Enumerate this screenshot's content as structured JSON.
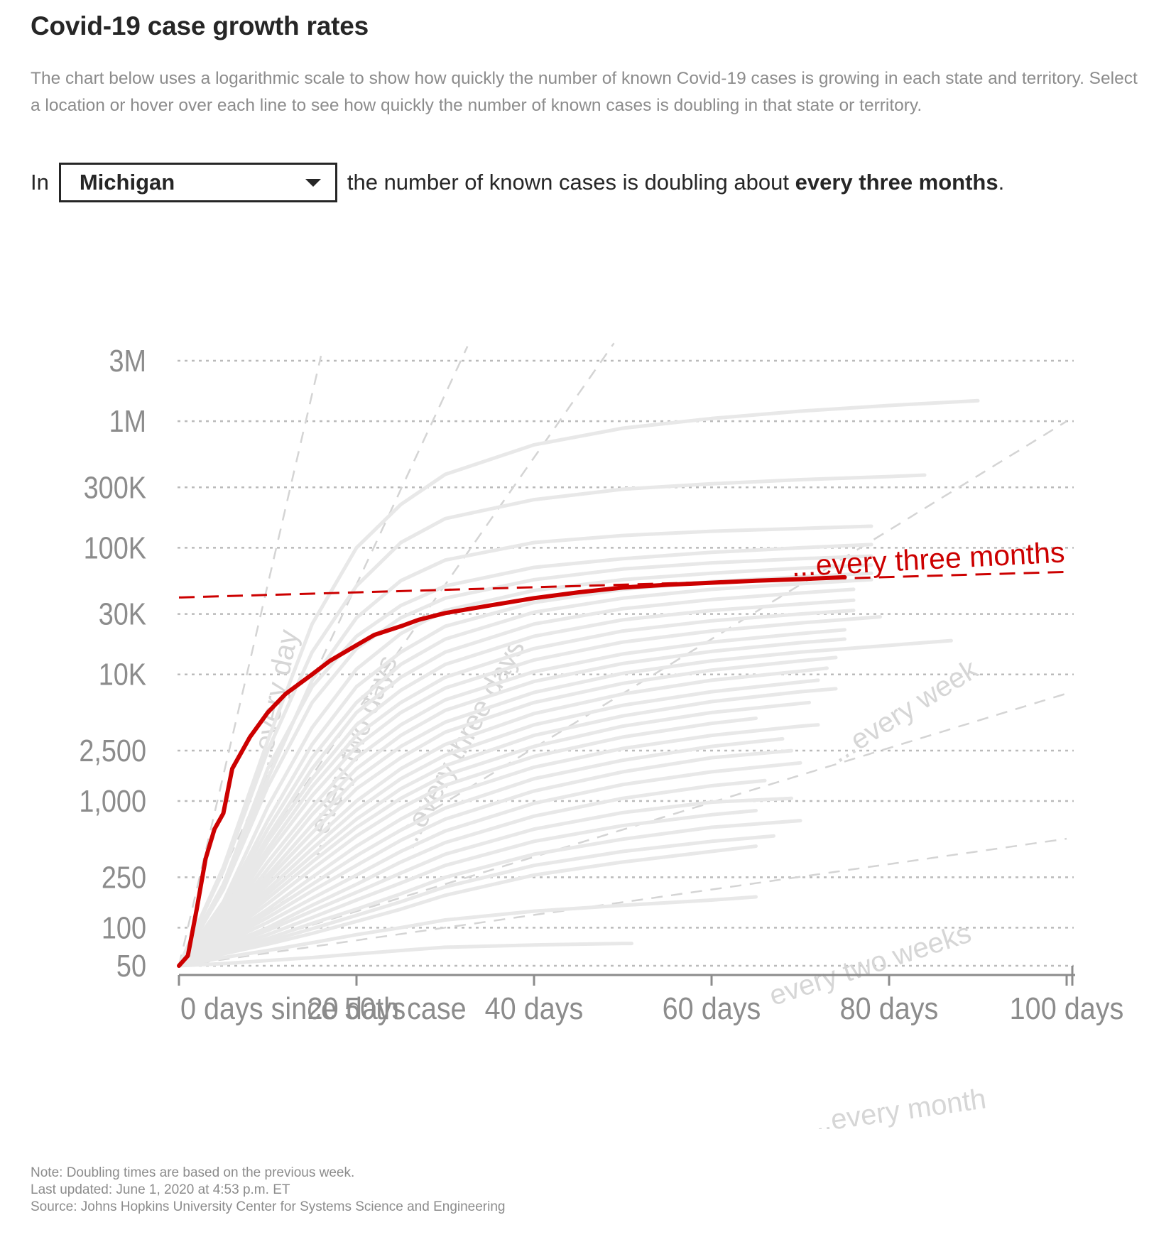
{
  "title": "Covid-19 case growth rates",
  "description": "The chart below uses a logarithmic scale to show how quickly the number of known Covid-19 cases is growing in each state and territory. Select a location or hover over each line to see how quickly the number of known cases is doubling in that state or territory.",
  "sentence": {
    "prefix": "In",
    "selected_location": "Michigan",
    "middle": "the number of known cases is doubling about",
    "rate": "every three months",
    "suffix": "."
  },
  "notes": {
    "note": "Note: Doubling times are based on the previous week.",
    "updated": "Last updated: June 1, 2020 at 4:53 p.m. ET",
    "source": "Source: Johns Hopkins University Center for Systems Science and Engineering"
  },
  "colors": {
    "highlight": "#cc0000",
    "background_lines": "#e8e8e8",
    "reference_lines": "#d4d4d4",
    "gridlines": "#bbbbbb",
    "axis": "#8c8c8c",
    "text": "#262626"
  },
  "chart_data": {
    "type": "line",
    "title": "Covid-19 case growth rates",
    "xlabel": "",
    "ylabel": "",
    "yscale": "log",
    "xlim": [
      0,
      100
    ],
    "ylim": [
      50,
      3000000
    ],
    "grid": "horizontal dotted",
    "y_ticks": [
      {
        "value": 50,
        "label": "50"
      },
      {
        "value": 100,
        "label": "100"
      },
      {
        "value": 250,
        "label": "250"
      },
      {
        "value": 1000,
        "label": "1,000"
      },
      {
        "value": 2500,
        "label": "2,500"
      },
      {
        "value": 10000,
        "label": "10K"
      },
      {
        "value": 30000,
        "label": "30K"
      },
      {
        "value": 100000,
        "label": "100K"
      },
      {
        "value": 300000,
        "label": "300K"
      },
      {
        "value": 1000000,
        "label": "1M"
      },
      {
        "value": 3000000,
        "label": "3M"
      }
    ],
    "x_ticks": [
      {
        "value": 0,
        "label": "0 days since 50th case"
      },
      {
        "value": 20,
        "label": "20 days"
      },
      {
        "value": 40,
        "label": "40 days"
      },
      {
        "value": 60,
        "label": "60 days"
      },
      {
        "value": 80,
        "label": "80 days"
      },
      {
        "value": 100,
        "label": "100 days"
      }
    ],
    "highlighted_series": {
      "name": "Michigan",
      "x": [
        0,
        1,
        2,
        3,
        4,
        5,
        6,
        8,
        10,
        12,
        15,
        17,
        20,
        22,
        25,
        27,
        30,
        35,
        40,
        45,
        50,
        55,
        60,
        65,
        70,
        75
      ],
      "y": [
        50,
        60,
        140,
        350,
        600,
        800,
        1800,
        3200,
        5000,
        7000,
        10000,
        12800,
        17000,
        20500,
        24000,
        27000,
        30500,
        35000,
        40000,
        44500,
        48500,
        51000,
        53000,
        55000,
        56500,
        58500
      ]
    },
    "highlight_reference": {
      "label": "...every three months",
      "y_at_0": 40500,
      "y_at_100": 64500
    },
    "doubling_reference_lines": [
      {
        "label": "...every day",
        "doubling_days": 1
      },
      {
        "label": "...every two days",
        "doubling_days": 2
      },
      {
        "label": "...every three days",
        "doubling_days": 3
      },
      {
        "label": "...every week",
        "doubling_days": 7
      },
      {
        "label": "every two weeks",
        "doubling_days": 14
      },
      {
        "label": "...every month",
        "doubling_days": 30
      }
    ],
    "background_series": [
      {
        "x": [
          0,
          5,
          10,
          15,
          20,
          25,
          30,
          40,
          50,
          60,
          70,
          80,
          90
        ],
        "y": [
          50,
          300,
          3000,
          25000,
          100000,
          220000,
          380000,
          650000,
          880000,
          1050000,
          1200000,
          1330000,
          1450000
        ]
      },
      {
        "x": [
          0,
          5,
          10,
          15,
          20,
          25,
          30,
          40,
          50,
          60,
          70,
          80,
          84
        ],
        "y": [
          50,
          280,
          2500,
          15000,
          50000,
          110000,
          170000,
          240000,
          290000,
          320000,
          345000,
          365000,
          375000
        ]
      },
      {
        "x": [
          0,
          5,
          10,
          15,
          20,
          25,
          30,
          40,
          50,
          60,
          70,
          78
        ],
        "y": [
          50,
          200,
          1500,
          9000,
          28000,
          55000,
          80000,
          110000,
          125000,
          135000,
          142000,
          148000
        ]
      },
      {
        "x": [
          0,
          5,
          10,
          15,
          20,
          25,
          30,
          40,
          50,
          60,
          70,
          78
        ],
        "y": [
          50,
          220,
          1800,
          8000,
          20000,
          35000,
          50000,
          70000,
          82000,
          92000,
          100000,
          106000
        ]
      },
      {
        "x": [
          0,
          5,
          10,
          15,
          20,
          25,
          30,
          40,
          50,
          60,
          70,
          78
        ],
        "y": [
          50,
          200,
          1300,
          6000,
          16000,
          28000,
          40000,
          56000,
          68000,
          76000,
          82000,
          86000
        ]
      },
      {
        "x": [
          0,
          5,
          10,
          15,
          20,
          25,
          30,
          40,
          50,
          60,
          70,
          78
        ],
        "y": [
          50,
          160,
          900,
          3800,
          11000,
          21000,
          32000,
          46000,
          56000,
          63000,
          69000,
          73000
        ]
      },
      {
        "x": [
          0,
          5,
          10,
          15,
          20,
          25,
          30,
          40,
          50,
          60,
          70,
          78
        ],
        "y": [
          50,
          150,
          700,
          2800,
          8000,
          15000,
          24000,
          37000,
          47000,
          54000,
          59000,
          63000
        ]
      },
      {
        "x": [
          0,
          5,
          10,
          15,
          20,
          25,
          30,
          40,
          50,
          60,
          70,
          78
        ],
        "y": [
          50,
          140,
          600,
          2200,
          6000,
          12000,
          19000,
          31000,
          40000,
          47000,
          52000,
          56000
        ]
      },
      {
        "x": [
          0,
          5,
          10,
          15,
          20,
          25,
          30,
          40,
          50,
          60,
          70,
          76
        ],
        "y": [
          50,
          130,
          520,
          1800,
          5000,
          9500,
          15000,
          25000,
          33000,
          39000,
          44000,
          47000
        ]
      },
      {
        "x": [
          0,
          5,
          10,
          15,
          20,
          25,
          30,
          40,
          50,
          60,
          70,
          76
        ],
        "y": [
          50,
          125,
          480,
          1500,
          4000,
          7500,
          12000,
          20000,
          27000,
          32000,
          36000,
          38500
        ]
      },
      {
        "x": [
          0,
          5,
          10,
          15,
          20,
          25,
          30,
          40,
          50,
          60,
          70,
          76
        ],
        "y": [
          50,
          120,
          420,
          1300,
          3300,
          6000,
          9500,
          16000,
          22000,
          26500,
          30000,
          32000
        ]
      },
      {
        "x": [
          0,
          5,
          10,
          15,
          20,
          25,
          30,
          40,
          50,
          60,
          70,
          79
        ],
        "y": [
          50,
          115,
          380,
          1100,
          2700,
          5000,
          7800,
          13000,
          18000,
          22000,
          25500,
          28500
        ]
      },
      {
        "x": [
          0,
          5,
          10,
          15,
          20,
          25,
          30,
          40,
          50,
          60,
          70,
          75
        ],
        "y": [
          50,
          110,
          330,
          900,
          2200,
          4000,
          6300,
          10500,
          14500,
          18000,
          21000,
          22500
        ]
      },
      {
        "x": [
          0,
          5,
          10,
          15,
          20,
          25,
          30,
          40,
          50,
          60,
          70,
          75
        ],
        "y": [
          50,
          105,
          290,
          780,
          1800,
          3300,
          5200,
          8800,
          12200,
          15200,
          17800,
          19000
        ]
      },
      {
        "x": [
          0,
          5,
          10,
          15,
          20,
          25,
          30,
          40,
          50,
          60,
          70,
          87
        ],
        "y": [
          50,
          100,
          260,
          650,
          1500,
          2700,
          4200,
          7200,
          10200,
          12800,
          15000,
          18500
        ]
      },
      {
        "x": [
          0,
          5,
          10,
          15,
          20,
          25,
          30,
          40,
          50,
          60,
          70,
          74
        ],
        "y": [
          50,
          98,
          240,
          560,
          1250,
          2200,
          3500,
          6000,
          8500,
          10800,
          12800,
          13600
        ]
      },
      {
        "x": [
          0,
          5,
          10,
          15,
          20,
          25,
          30,
          40,
          50,
          60,
          70,
          73
        ],
        "y": [
          50,
          95,
          220,
          480,
          1000,
          1800,
          2800,
          4900,
          7000,
          9000,
          10600,
          11200
        ]
      },
      {
        "x": [
          0,
          5,
          10,
          15,
          20,
          25,
          30,
          40,
          50,
          60,
          70,
          72
        ],
        "y": [
          50,
          92,
          200,
          420,
          850,
          1500,
          2300,
          4000,
          5700,
          7300,
          8700,
          9000
        ]
      },
      {
        "x": [
          0,
          5,
          10,
          15,
          20,
          25,
          30,
          40,
          50,
          60,
          70,
          74
        ],
        "y": [
          50,
          90,
          185,
          370,
          720,
          1250,
          1900,
          3300,
          4700,
          6100,
          7300,
          7700
        ]
      },
      {
        "x": [
          0,
          5,
          10,
          15,
          20,
          25,
          30,
          40,
          50,
          60,
          71
        ],
        "y": [
          50,
          88,
          170,
          330,
          620,
          1050,
          1600,
          2700,
          3900,
          5000,
          6000
        ]
      },
      {
        "x": [
          0,
          5,
          10,
          15,
          20,
          25,
          30,
          40,
          50,
          60,
          65
        ],
        "y": [
          50,
          85,
          155,
          290,
          530,
          880,
          1330,
          2250,
          3200,
          4100,
          4500
        ]
      },
      {
        "x": [
          0,
          5,
          10,
          15,
          20,
          25,
          30,
          40,
          50,
          60,
          70,
          72
        ],
        "y": [
          50,
          82,
          140,
          250,
          440,
          720,
          1100,
          1850,
          2600,
          3300,
          3900,
          4000
        ]
      },
      {
        "x": [
          0,
          5,
          10,
          15,
          20,
          25,
          30,
          40,
          50,
          60,
          68
        ],
        "y": [
          50,
          80,
          130,
          220,
          370,
          590,
          880,
          1500,
          2100,
          2700,
          3100
        ]
      },
      {
        "x": [
          0,
          5,
          10,
          15,
          20,
          25,
          30,
          40,
          50,
          60,
          69
        ],
        "y": [
          50,
          78,
          120,
          195,
          310,
          490,
          720,
          1200,
          1700,
          2200,
          2500
        ]
      },
      {
        "x": [
          0,
          5,
          10,
          15,
          20,
          25,
          30,
          40,
          50,
          60,
          70
        ],
        "y": [
          50,
          75,
          110,
          170,
          260,
          400,
          580,
          960,
          1350,
          1700,
          2000
        ]
      },
      {
        "x": [
          0,
          5,
          10,
          15,
          20,
          25,
          30,
          40,
          50,
          60,
          66
        ],
        "y": [
          50,
          72,
          100,
          150,
          220,
          330,
          470,
          760,
          1050,
          1320,
          1450
        ]
      },
      {
        "x": [
          0,
          5,
          10,
          15,
          20,
          25,
          30,
          40,
          50,
          60,
          69
        ],
        "y": [
          50,
          70,
          95,
          135,
          190,
          270,
          380,
          600,
          810,
          980,
          1050
        ]
      },
      {
        "x": [
          0,
          5,
          10,
          15,
          20,
          25,
          30,
          40,
          50,
          60,
          65
        ],
        "y": [
          50,
          68,
          88,
          120,
          165,
          225,
          310,
          480,
          640,
          780,
          840
        ]
      },
      {
        "x": [
          0,
          5,
          10,
          15,
          20,
          25,
          30,
          40,
          50,
          60,
          70
        ],
        "y": [
          50,
          66,
          82,
          108,
          140,
          185,
          250,
          380,
          500,
          620,
          700
        ]
      },
      {
        "x": [
          0,
          5,
          10,
          15,
          20,
          25,
          30,
          40,
          50,
          60,
          67
        ],
        "y": [
          50,
          64,
          78,
          98,
          125,
          160,
          210,
          310,
          400,
          480,
          530
        ]
      },
      {
        "x": [
          0,
          5,
          10,
          15,
          20,
          25,
          30,
          40,
          50,
          60,
          65
        ],
        "y": [
          50,
          62,
          74,
          90,
          112,
          140,
          180,
          260,
          330,
          400,
          440
        ]
      },
      {
        "x": [
          0,
          5,
          10,
          15,
          20,
          25,
          30,
          40,
          50,
          60,
          65
        ],
        "y": [
          50,
          58,
          66,
          76,
          88,
          100,
          115,
          135,
          150,
          165,
          175
        ]
      },
      {
        "x": [
          0,
          5,
          10,
          15,
          20,
          25,
          30,
          40,
          50,
          51
        ],
        "y": [
          50,
          52,
          55,
          58,
          62,
          66,
          70,
          73,
          75,
          75
        ]
      }
    ]
  }
}
